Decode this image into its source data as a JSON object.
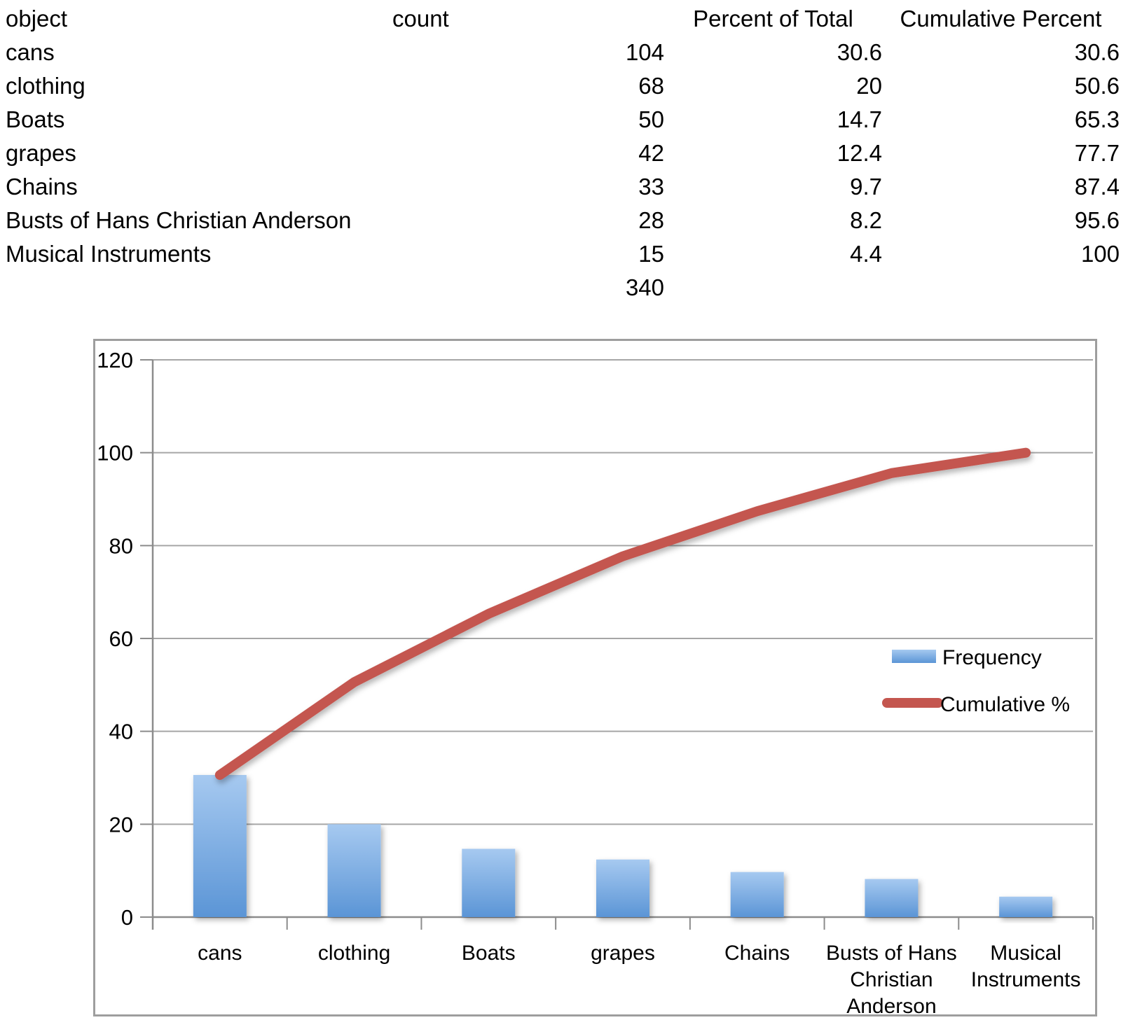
{
  "page": {
    "background": "#ffffff"
  },
  "table": {
    "headers": {
      "object": "object",
      "count": "count",
      "percent": "Percent of Total",
      "cumulative": "Cumulative Percent"
    },
    "rows": [
      {
        "object": "cans",
        "count": "104",
        "percent": "30.6",
        "cumulative": "30.6"
      },
      {
        "object": "clothing",
        "count": "68",
        "percent": "20",
        "cumulative": "50.6"
      },
      {
        "object": "Boats",
        "count": "50",
        "percent": "14.7",
        "cumulative": "65.3"
      },
      {
        "object": "grapes",
        "count": "42",
        "percent": "12.4",
        "cumulative": "77.7"
      },
      {
        "object": "Chains",
        "count": "33",
        "percent": "9.7",
        "cumulative": "87.4"
      },
      {
        "object": "Busts of Hans Christian Anderson",
        "count": "28",
        "percent": "8.2",
        "cumulative": "95.6"
      },
      {
        "object": "Musical Instruments",
        "count": "15",
        "percent": "4.4",
        "cumulative": "100"
      }
    ],
    "total_count": "340"
  },
  "chart_data": {
    "type": "bar",
    "subtype": "pareto (bar + cumulative line)",
    "title": "",
    "xlabel": "",
    "ylabel": "",
    "categories": [
      "cans",
      "clothing",
      "Boats",
      "grapes",
      "Chains",
      "Busts of Hans Christian Anderson",
      "Musical Instruments"
    ],
    "category_label_lines": [
      [
        "cans"
      ],
      [
        "clothing"
      ],
      [
        "Boats"
      ],
      [
        "grapes"
      ],
      [
        "Chains"
      ],
      [
        "Busts of Hans",
        "Christian",
        "Anderson"
      ],
      [
        "Musical",
        "Instruments"
      ]
    ],
    "series": [
      {
        "name": "Frequency",
        "type": "bar",
        "values": [
          30.6,
          20,
          14.7,
          12.4,
          9.7,
          8.2,
          4.4
        ]
      },
      {
        "name": "Cumulative %",
        "type": "line",
        "values": [
          30.6,
          50.6,
          65.3,
          77.7,
          87.4,
          95.6,
          100
        ]
      }
    ],
    "ylim": [
      0,
      120
    ],
    "yticks": [
      0,
      20,
      40,
      60,
      80,
      100,
      120
    ],
    "grid": true,
    "legend_position": "middle-right",
    "colors": {
      "bar_top": "#A6C9F0",
      "bar_bottom": "#5B95D6",
      "line": "#C4564F",
      "grid": "#A6A6A6",
      "axis": "#8C8C8C",
      "frame": "#9E9E9E",
      "text": "#000000"
    }
  }
}
